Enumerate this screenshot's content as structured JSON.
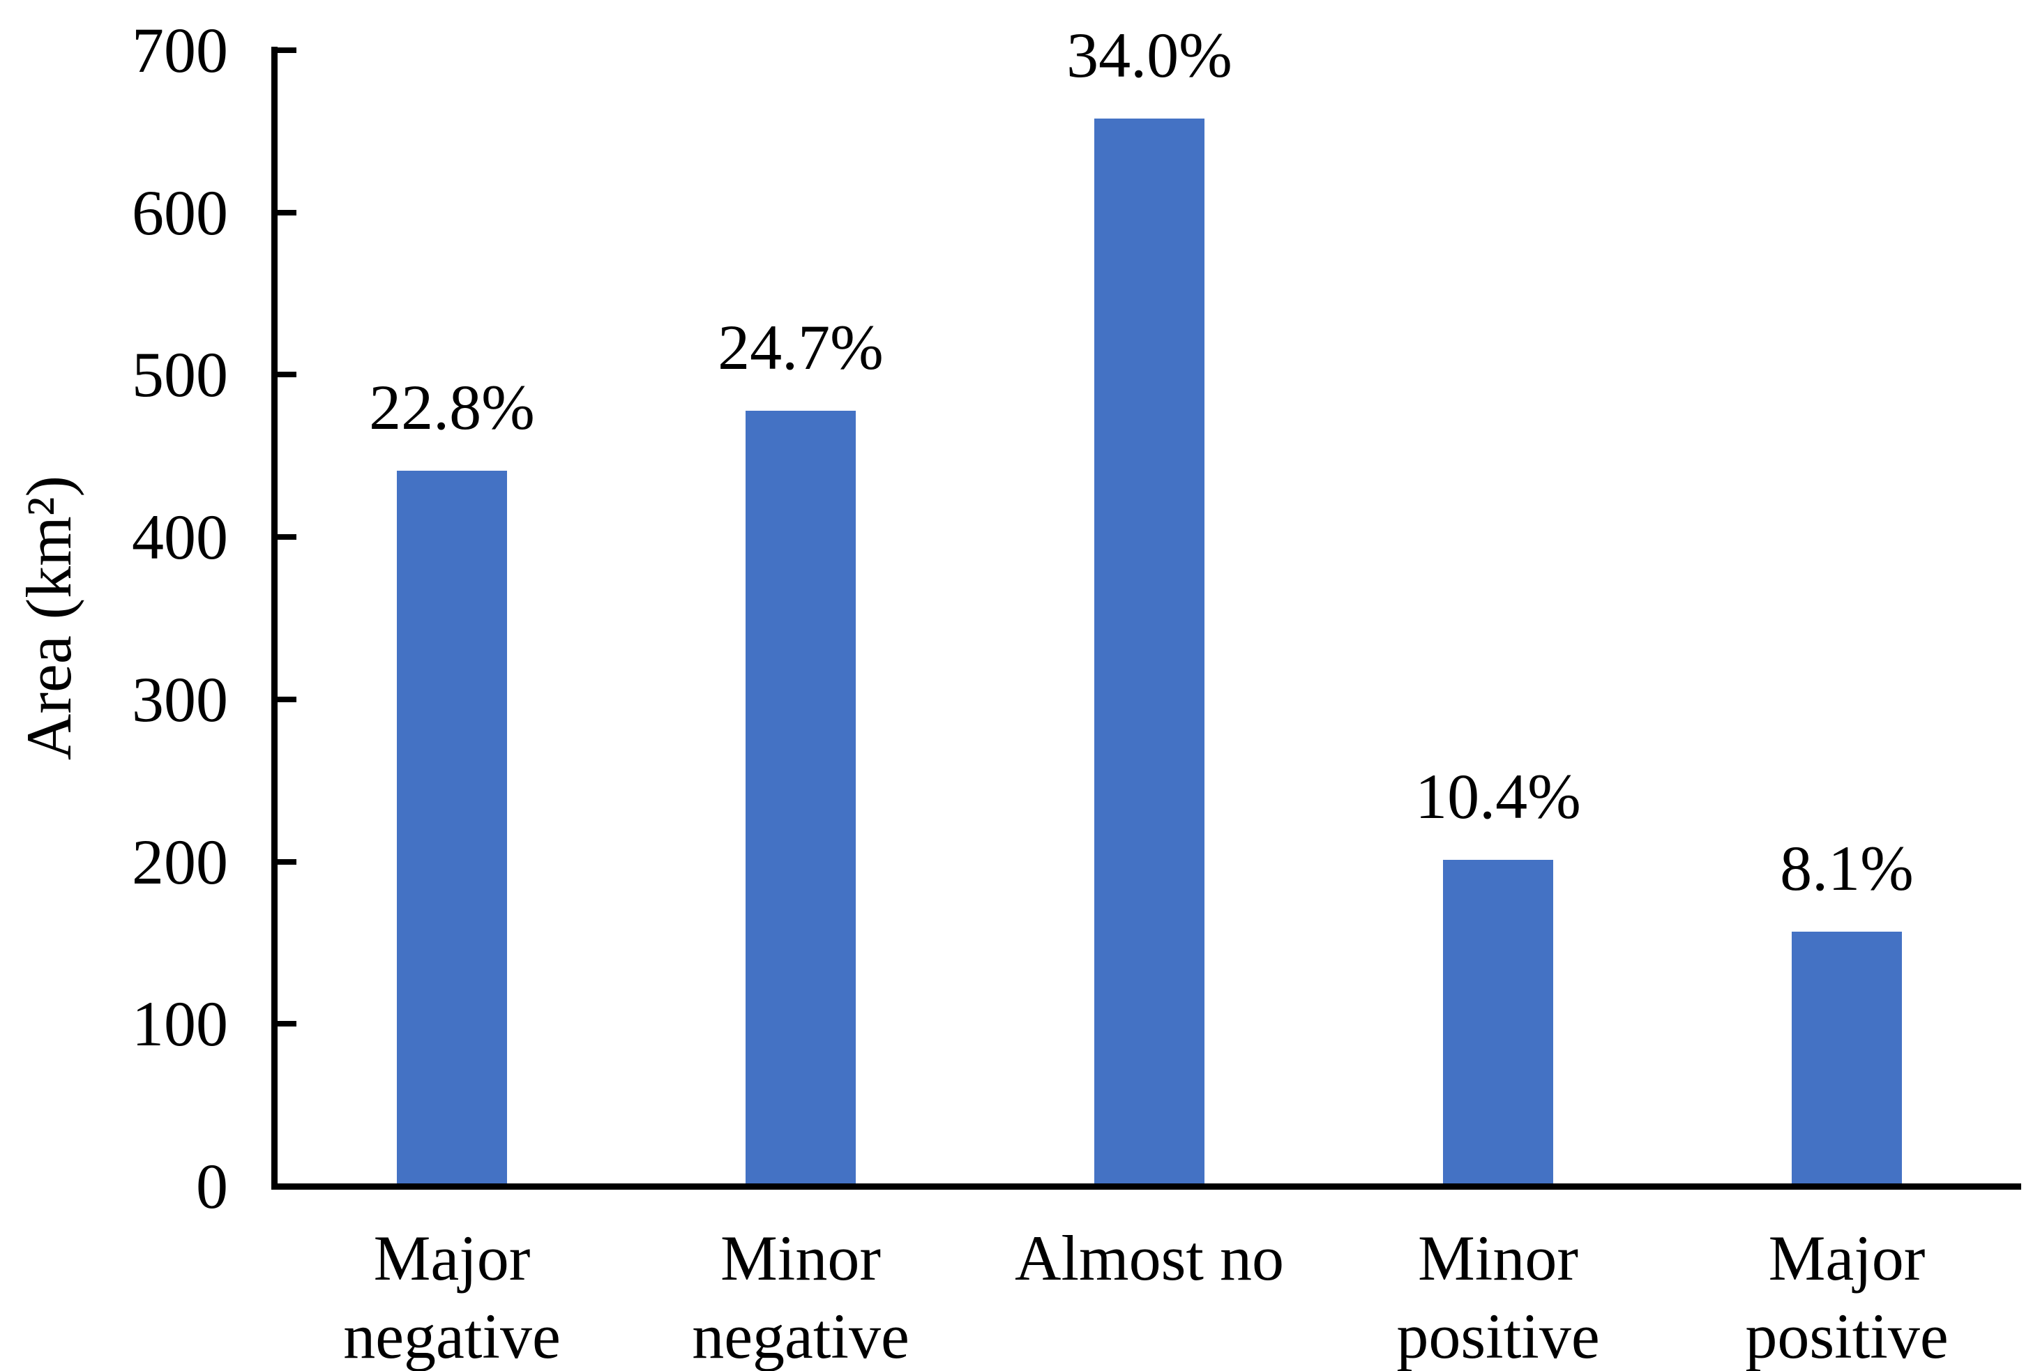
{
  "chart_data": {
    "type": "bar",
    "title": "",
    "ylabel": "Area (km²)",
    "xlabel": "",
    "ylim": [
      0,
      700
    ],
    "yticks": [
      0,
      100,
      200,
      300,
      400,
      500,
      600,
      700
    ],
    "grid": false,
    "legend": false,
    "tick_style": "inside",
    "categories": [
      "Major\nnegative",
      "Minor\nnegative",
      "Almost no",
      "Minor\npositive",
      "Major\npositive"
    ],
    "values": [
      441,
      478,
      658,
      201,
      157
    ],
    "bar_labels": [
      "22.8%",
      "24.7%",
      "34.0%",
      "10.4%",
      "8.1%"
    ],
    "bar_color": "#4472C4",
    "axis_color": "#000000",
    "text_color": "#000000",
    "background_color": "#FFFFFF"
  }
}
